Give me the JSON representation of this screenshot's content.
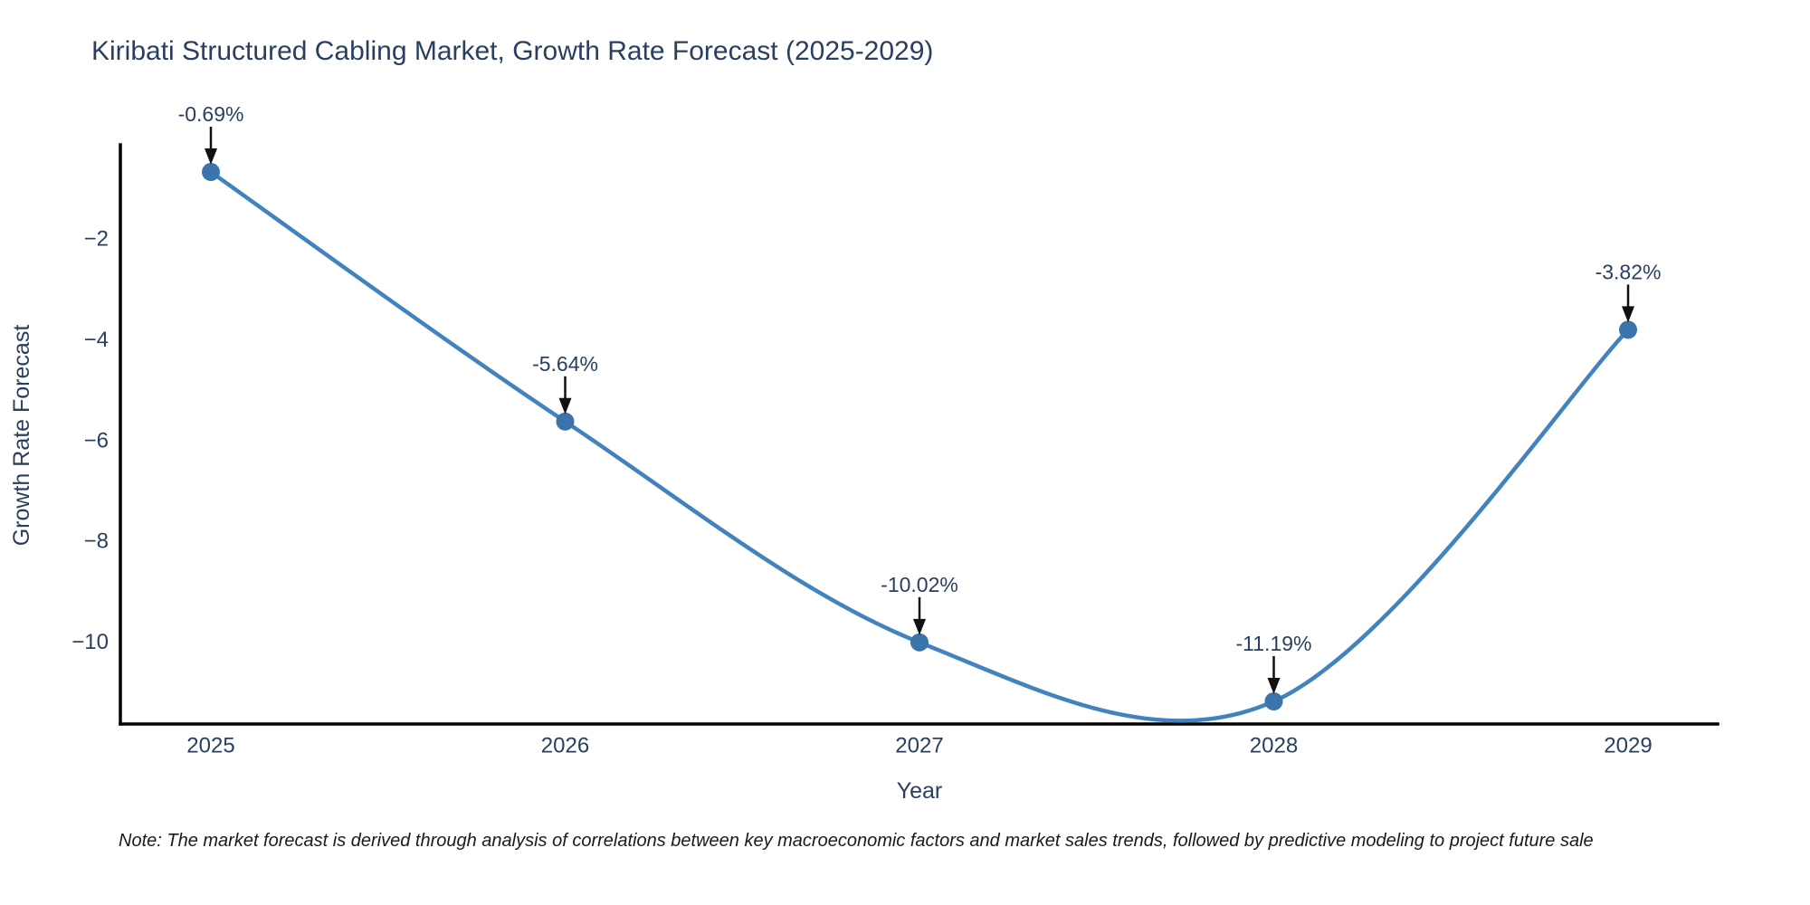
{
  "title": "Kiribati Structured Cabling Market, Growth Rate Forecast (2025-2029)",
  "note": "Note: The market forecast is derived through analysis of correlations between key macroeconomic factors and market sales trends, followed by predictive modeling to project future sale",
  "chart_data": {
    "type": "line",
    "title": "Kiribati Structured Cabling Market, Growth Rate Forecast (2025-2029)",
    "xlabel": "Year",
    "ylabel": "Growth Rate Forecast",
    "x": [
      2025,
      2026,
      2027,
      2028,
      2029
    ],
    "y": [
      -0.69,
      -5.64,
      -10.02,
      -11.19,
      -3.82
    ],
    "point_labels": [
      "-0.69%",
      "-5.64%",
      "-10.02%",
      "-11.19%",
      "-3.82%"
    ],
    "x_tick_labels": [
      "2025",
      "2026",
      "2027",
      "2028",
      "2029"
    ],
    "y_ticks": [
      -2,
      -4,
      -6,
      -8,
      -10
    ],
    "y_tick_labels": [
      "−2",
      "−4",
      "−6",
      "−8",
      "−10"
    ],
    "ylim": [
      -11.64,
      -0.15
    ],
    "xlim_years": [
      2024.75,
      2029.25
    ],
    "grid": false,
    "legend": "none",
    "line_shape": "spline",
    "annotation_style": "label-with-down-arrow",
    "colors": {
      "line": "#4283bd",
      "marker": "#3a74ab",
      "axis_line": "#000000",
      "chart_text": "#2a3f5f",
      "annotation_text": "#2a3f5f",
      "arrow": "#111111",
      "note_text": "#1a1a1a",
      "background": "#ffffff"
    }
  }
}
